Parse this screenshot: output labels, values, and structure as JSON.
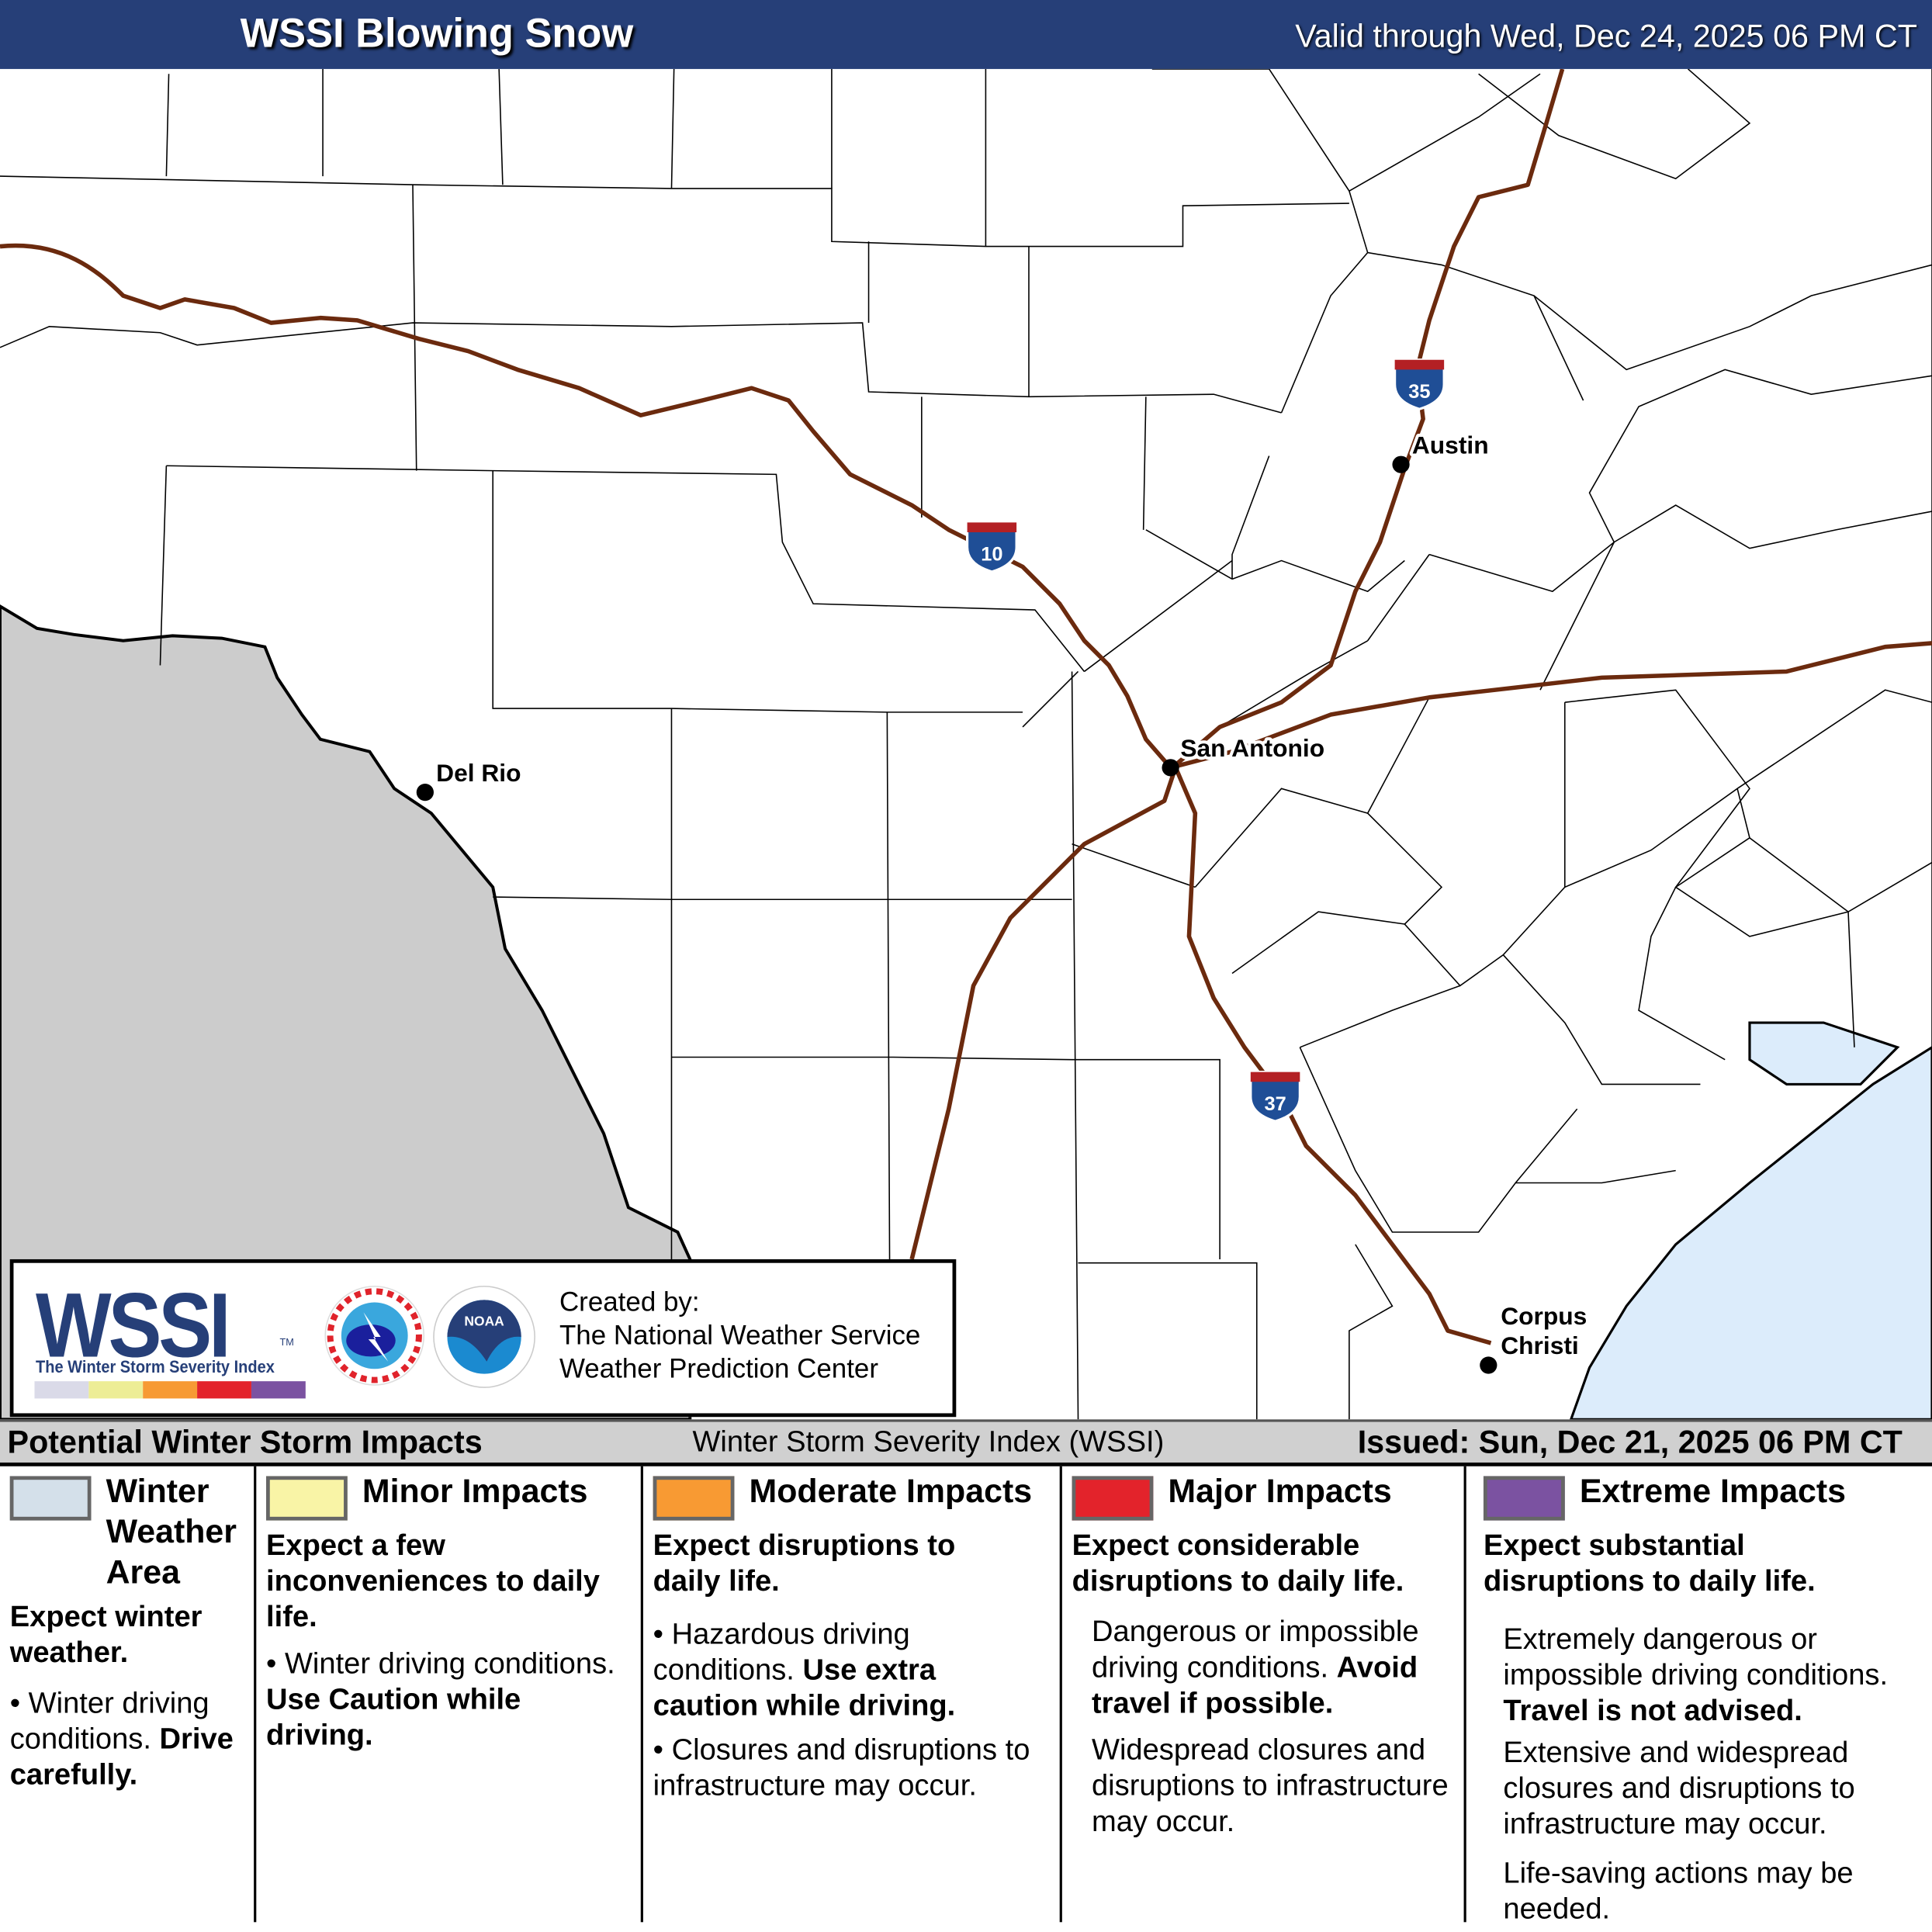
{
  "header": {
    "title": "WSSI Blowing Snow",
    "valid": "Valid through Wed, Dec 24, 2025 06 PM CT"
  },
  "map": {
    "cities": [
      {
        "name": "Del Rio"
      },
      {
        "name": "San Antonio"
      },
      {
        "name": "Austin"
      },
      {
        "name": "Corpus",
        "name2": "Christi"
      }
    ],
    "interstates": [
      "10",
      "35",
      "37"
    ],
    "colors": {
      "road": "#6b2a0e",
      "mexico": "#cccccc",
      "water": "#dcecfb",
      "shield_blue": "#1f4e96",
      "shield_red": "#b32024"
    }
  },
  "logo": {
    "wssi": "WSSI",
    "tm": "TM",
    "subtitle": "The Winter Storm Severity Index",
    "colors": [
      "#dadae8",
      "#eded96",
      "#f79a34",
      "#e3232b",
      "#7b52a1"
    ],
    "created_by": "Created by:",
    "org1": "The National Weather Service",
    "org2": "Weather Prediction Center"
  },
  "legend": {
    "title": "Potential Winter Storm Impacts",
    "index_name": "Winter Storm Severity Index (WSSI)",
    "issued": "Issued: Sun, Dec 21, 2025 06 PM CT",
    "categories": [
      {
        "name": "Winter Weather Area",
        "color": "#d4e0ea",
        "summary": "Expect winter weather.",
        "b1": "Winter driving conditions.",
        "b1_bold": "Drive carefully."
      },
      {
        "name": "Minor Impacts",
        "color": "#f9f4a6",
        "summary": "Expect a few inconveniences to daily life.",
        "b1": "Winter driving conditions.",
        "b1_bold": "Use Caution while driving."
      },
      {
        "name": "Moderate Impacts",
        "color": "#f89a33",
        "summary": "Expect disruptions to daily life.",
        "b1": "Hazardous driving conditions.",
        "b1_bold": "Use extra caution while driving.",
        "b2": "Closures and disruptions to infrastructure may occur."
      },
      {
        "name": "Major Impacts",
        "color": "#e3232b",
        "summary": "Expect considerable disruptions to daily life.",
        "b1": "Dangerous or impossible driving conditions.",
        "b1_bold": "Avoid travel if possible.",
        "b2": "Widespread closures and disruptions to infrastructure may occur."
      },
      {
        "name": "Extreme Impacts",
        "color": "#7b52a1",
        "summary": "Expect substantial disruptions to daily life.",
        "b1": "Extremely dangerous or impossible driving conditions.",
        "b1_bold": "Travel is not advised.",
        "b2": "Extensive and widespread closures and disruptions to infrastructure may occur.",
        "b3": "Life-saving actions may be needed."
      }
    ]
  }
}
